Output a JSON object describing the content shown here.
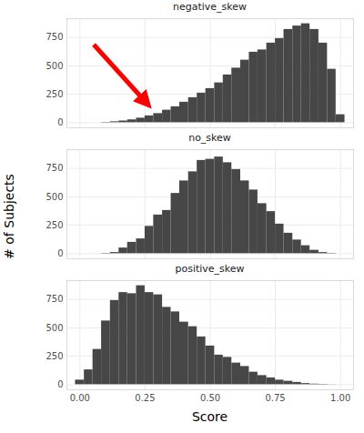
{
  "chart_data": {
    "type": "histogram",
    "x_label": "Score",
    "y_label": "# of Subjects",
    "bins": [
      -0.017,
      0.017,
      0.05,
      0.083,
      0.117,
      0.15,
      0.183,
      0.217,
      0.25,
      0.283,
      0.317,
      0.35,
      0.383,
      0.417,
      0.45,
      0.483,
      0.517,
      0.55,
      0.583,
      0.617,
      0.65,
      0.683,
      0.717,
      0.75,
      0.783,
      0.817,
      0.85,
      0.883,
      0.917,
      0.95,
      0.983,
      1.017
    ],
    "series": [
      {
        "name": "negative_skew",
        "values": [
          0,
          0,
          0,
          3,
          8,
          15,
          25,
          40,
          60,
          80,
          110,
          140,
          180,
          220,
          260,
          300,
          350,
          420,
          480,
          550,
          620,
          640,
          700,
          740,
          820,
          850,
          870,
          820,
          700,
          470,
          70
        ]
      },
      {
        "name": "no_skew",
        "values": [
          0,
          0,
          0,
          3,
          10,
          50,
          100,
          130,
          240,
          340,
          380,
          530,
          640,
          720,
          820,
          830,
          850,
          800,
          740,
          640,
          560,
          440,
          370,
          260,
          180,
          120,
          70,
          30,
          10,
          3,
          0
        ]
      },
      {
        "name": "positive_skew",
        "values": [
          40,
          130,
          310,
          560,
          740,
          810,
          800,
          870,
          810,
          790,
          680,
          640,
          550,
          510,
          420,
          340,
          260,
          240,
          190,
          160,
          110,
          80,
          60,
          40,
          30,
          20,
          10,
          5,
          3,
          1,
          0
        ]
      }
    ],
    "color": "#474747",
    "xlim": [
      -0.05,
      1.05
    ],
    "xticks": [
      {
        "value": 0,
        "label": "0.00"
      },
      {
        "value": 0.25,
        "label": "0.25"
      },
      {
        "value": 0.5,
        "label": "0.50"
      },
      {
        "value": 0.75,
        "label": "0.75"
      },
      {
        "value": 1,
        "label": "1.00"
      }
    ],
    "ylim": [
      -45,
      915
    ],
    "yticks": [
      0,
      250,
      500,
      750
    ],
    "grid": true
  }
}
